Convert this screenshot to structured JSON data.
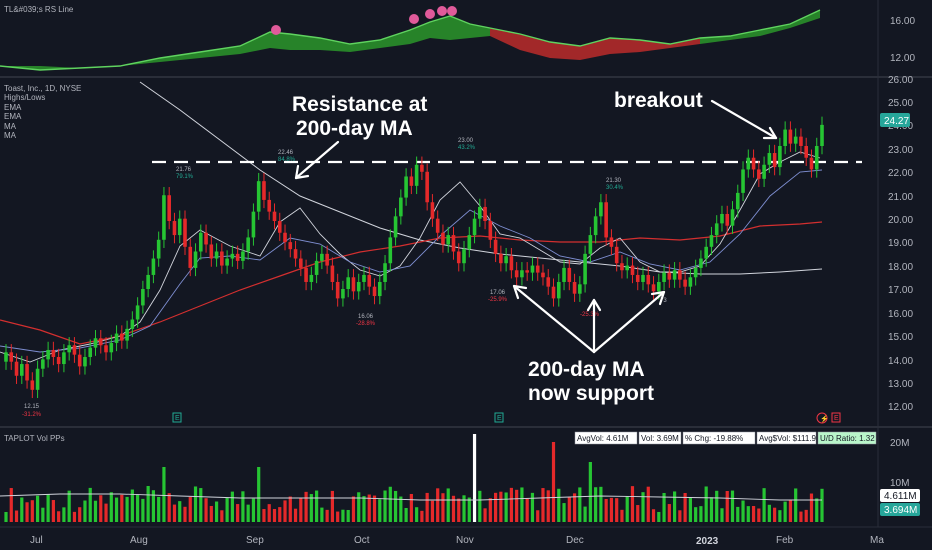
{
  "rs_panel": {
    "title": "TL&#039;s RS Line",
    "yticks": [
      "16.00",
      "12.00"
    ]
  },
  "price_panel": {
    "legend": [
      "Toast, Inc., 1D, NYSE",
      "Highs/Lows",
      "EMA",
      "EMA",
      "MA",
      "MA"
    ],
    "yticks": [
      "26.00",
      "25.00",
      "24.00",
      "23.00",
      "22.00",
      "21.00",
      "20.00",
      "19.00",
      "18.00",
      "17.00",
      "16.00",
      "15.00",
      "14.00",
      "13.00",
      "12.00"
    ],
    "last_price": "24.27",
    "earnings_markers": [
      "E",
      "E",
      "E"
    ],
    "highs_lows": [
      {
        "price": "12.15",
        "pct": "-31.2%",
        "color": "#f23645"
      },
      {
        "price": "21.76",
        "pct": "79.1%",
        "color": "#22ab94"
      },
      {
        "price": "22.46",
        "pct": "84.8%",
        "color": "#22ab94"
      },
      {
        "price": "16.06",
        "pct": "-28.8%",
        "color": "#f23645"
      },
      {
        "price": "23.00",
        "pct": "43.2%",
        "color": "#22ab94"
      },
      {
        "price": "17.06",
        "pct": "-25.9%",
        "color": "#f23645"
      },
      {
        "price": "21.30",
        "pct": "30.4%",
        "color": "#22ab94"
      },
      {
        "price": "",
        "pct": "-25.3%",
        "color": "#f23645"
      },
      {
        "price": "73",
        "pct": "",
        "color": "#f23645"
      }
    ]
  },
  "annotations": {
    "resistance": [
      "Resistance at",
      "200-day MA"
    ],
    "breakout": "breakout",
    "support": [
      "200-day MA",
      "now support"
    ]
  },
  "volume_panel": {
    "title": "TAPLOT Vol PPs",
    "stats": [
      "AvgVol: 4.61M",
      "Vol: 3.69M",
      "% Chg: -19.88%",
      "Avg$Vol: $111.9M",
      "U/D Ratio: 1.32"
    ],
    "yticks": [
      "20M",
      "10M"
    ],
    "avg_label": "4.611M",
    "vol_label": "3.694M"
  },
  "x_axis": {
    "labels": [
      "Jul",
      "Aug",
      "Sep",
      "Oct",
      "Nov",
      "Dec",
      "2023",
      "Feb",
      "Ma"
    ]
  },
  "colors": {
    "up": "#26c533",
    "down": "#e5292a",
    "bg": "#131722",
    "ma200": "#d1d4dc",
    "ma50": "#d32f2f",
    "ema_fast": "#d1d4dc",
    "ema_slow": "#7e8ed1"
  },
  "chart_data": {
    "type": "candlestick",
    "series_points": [
      {
        "p": 14.6,
        "u": 1
      },
      {
        "p": 14.2,
        "u": 0
      },
      {
        "p": 13.6,
        "u": 0
      },
      {
        "p": 14.1,
        "u": 1
      },
      {
        "p": 13.4,
        "u": 0
      },
      {
        "p": 13.0,
        "u": 0
      },
      {
        "p": 13.9,
        "u": 1
      },
      {
        "p": 14.3,
        "u": 1
      },
      {
        "p": 14.7,
        "u": 1
      },
      {
        "p": 14.4,
        "u": 0
      },
      {
        "p": 14.1,
        "u": 0
      },
      {
        "p": 14.6,
        "u": 1
      },
      {
        "p": 14.9,
        "u": 1
      },
      {
        "p": 14.5,
        "u": 0
      },
      {
        "p": 14.0,
        "u": 0
      },
      {
        "p": 14.4,
        "u": 1
      },
      {
        "p": 14.8,
        "u": 1
      },
      {
        "p": 15.2,
        "u": 1
      },
      {
        "p": 14.9,
        "u": 0
      },
      {
        "p": 14.6,
        "u": 0
      },
      {
        "p": 15.0,
        "u": 1
      },
      {
        "p": 15.4,
        "u": 1
      },
      {
        "p": 15.1,
        "u": 0
      },
      {
        "p": 15.6,
        "u": 1
      },
      {
        "p": 16.0,
        "u": 1
      },
      {
        "p": 16.6,
        "u": 1
      },
      {
        "p": 17.3,
        "u": 1
      },
      {
        "p": 17.9,
        "u": 1
      },
      {
        "p": 18.6,
        "u": 1
      },
      {
        "p": 19.4,
        "u": 1
      },
      {
        "p": 21.3,
        "u": 1
      },
      {
        "p": 20.2,
        "u": 0
      },
      {
        "p": 19.6,
        "u": 0
      },
      {
        "p": 20.3,
        "u": 1
      },
      {
        "p": 19.1,
        "u": 0
      },
      {
        "p": 18.2,
        "u": 0
      },
      {
        "p": 18.9,
        "u": 1
      },
      {
        "p": 19.7,
        "u": 1
      },
      {
        "p": 19.2,
        "u": 0
      },
      {
        "p": 18.6,
        "u": 0
      },
      {
        "p": 18.9,
        "u": 1
      },
      {
        "p": 18.3,
        "u": 0
      },
      {
        "p": 18.6,
        "u": 1
      },
      {
        "p": 18.8,
        "u": 1
      },
      {
        "p": 18.5,
        "u": 0
      },
      {
        "p": 18.9,
        "u": 1
      },
      {
        "p": 19.5,
        "u": 1
      },
      {
        "p": 20.6,
        "u": 1
      },
      {
        "p": 21.9,
        "u": 1
      },
      {
        "p": 21.1,
        "u": 0
      },
      {
        "p": 20.6,
        "u": 0
      },
      {
        "p": 20.2,
        "u": 0
      },
      {
        "p": 19.7,
        "u": 0
      },
      {
        "p": 19.3,
        "u": 0
      },
      {
        "p": 19.0,
        "u": 0
      },
      {
        "p": 18.6,
        "u": 0
      },
      {
        "p": 18.2,
        "u": 0
      },
      {
        "p": 17.6,
        "u": 0
      },
      {
        "p": 17.9,
        "u": 1
      },
      {
        "p": 18.5,
        "u": 1
      },
      {
        "p": 18.8,
        "u": 1
      },
      {
        "p": 18.3,
        "u": 0
      },
      {
        "p": 17.6,
        "u": 0
      },
      {
        "p": 16.9,
        "u": 0
      },
      {
        "p": 17.3,
        "u": 1
      },
      {
        "p": 17.8,
        "u": 1
      },
      {
        "p": 17.2,
        "u": 0
      },
      {
        "p": 17.6,
        "u": 1
      },
      {
        "p": 17.9,
        "u": 1
      },
      {
        "p": 17.4,
        "u": 0
      },
      {
        "p": 17.0,
        "u": 0
      },
      {
        "p": 17.6,
        "u": 1
      },
      {
        "p": 18.4,
        "u": 1
      },
      {
        "p": 19.5,
        "u": 1
      },
      {
        "p": 20.4,
        "u": 1
      },
      {
        "p": 21.2,
        "u": 1
      },
      {
        "p": 22.1,
        "u": 1
      },
      {
        "p": 21.7,
        "u": 0
      },
      {
        "p": 22.6,
        "u": 1
      },
      {
        "p": 22.3,
        "u": 0
      },
      {
        "p": 21.0,
        "u": 0
      },
      {
        "p": 20.3,
        "u": 0
      },
      {
        "p": 19.7,
        "u": 0
      },
      {
        "p": 19.2,
        "u": 0
      },
      {
        "p": 19.6,
        "u": 1
      },
      {
        "p": 18.9,
        "u": 0
      },
      {
        "p": 18.4,
        "u": 0
      },
      {
        "p": 19.0,
        "u": 1
      },
      {
        "p": 19.6,
        "u": 1
      },
      {
        "p": 20.3,
        "u": 1
      },
      {
        "p": 20.8,
        "u": 1
      },
      {
        "p": 20.2,
        "u": 0
      },
      {
        "p": 19.4,
        "u": 0
      },
      {
        "p": 18.8,
        "u": 0
      },
      {
        "p": 18.4,
        "u": 0
      },
      {
        "p": 18.7,
        "u": 1
      },
      {
        "p": 18.1,
        "u": 0
      },
      {
        "p": 17.8,
        "u": 0
      },
      {
        "p": 18.1,
        "u": 1
      },
      {
        "p": 18.0,
        "u": 0
      },
      {
        "p": 18.3,
        "u": 1
      },
      {
        "p": 18.0,
        "u": 0
      },
      {
        "p": 17.8,
        "u": 0
      },
      {
        "p": 17.4,
        "u": 0
      },
      {
        "p": 16.9,
        "u": 0
      },
      {
        "p": 17.6,
        "u": 1
      },
      {
        "p": 18.2,
        "u": 1
      },
      {
        "p": 17.6,
        "u": 0
      },
      {
        "p": 17.1,
        "u": 0
      },
      {
        "p": 17.5,
        "u": 1
      },
      {
        "p": 18.8,
        "u": 1
      },
      {
        "p": 19.6,
        "u": 1
      },
      {
        "p": 20.4,
        "u": 1
      },
      {
        "p": 21.0,
        "u": 1
      },
      {
        "p": 19.5,
        "u": 0
      },
      {
        "p": 19.1,
        "u": 0
      },
      {
        "p": 18.4,
        "u": 0
      },
      {
        "p": 18.1,
        "u": 0
      },
      {
        "p": 18.3,
        "u": 1
      },
      {
        "p": 17.9,
        "u": 0
      },
      {
        "p": 17.6,
        "u": 0
      },
      {
        "p": 17.9,
        "u": 1
      },
      {
        "p": 17.5,
        "u": 0
      },
      {
        "p": 17.2,
        "u": 0
      },
      {
        "p": 17.6,
        "u": 1
      },
      {
        "p": 18.0,
        "u": 1
      },
      {
        "p": 17.7,
        "u": 0
      },
      {
        "p": 18.1,
        "u": 1
      },
      {
        "p": 17.7,
        "u": 0
      },
      {
        "p": 17.4,
        "u": 0
      },
      {
        "p": 17.8,
        "u": 1
      },
      {
        "p": 18.2,
        "u": 1
      },
      {
        "p": 18.6,
        "u": 1
      },
      {
        "p": 19.1,
        "u": 1
      },
      {
        "p": 19.6,
        "u": 1
      },
      {
        "p": 20.1,
        "u": 1
      },
      {
        "p": 20.5,
        "u": 1
      },
      {
        "p": 20.0,
        "u": 0
      },
      {
        "p": 20.7,
        "u": 1
      },
      {
        "p": 21.4,
        "u": 1
      },
      {
        "p": 22.4,
        "u": 1
      },
      {
        "p": 22.9,
        "u": 1
      },
      {
        "p": 22.4,
        "u": 0
      },
      {
        "p": 22.0,
        "u": 0
      },
      {
        "p": 22.6,
        "u": 1
      },
      {
        "p": 23.1,
        "u": 1
      },
      {
        "p": 22.5,
        "u": 0
      },
      {
        "p": 23.4,
        "u": 1
      },
      {
        "p": 24.1,
        "u": 1
      },
      {
        "p": 23.5,
        "u": 0
      },
      {
        "p": 23.8,
        "u": 1
      },
      {
        "p": 23.4,
        "u": 0
      },
      {
        "p": 22.9,
        "u": 0
      },
      {
        "p": 22.4,
        "u": 0
      },
      {
        "p": 23.4,
        "u": 1
      },
      {
        "p": 24.3,
        "u": 1
      }
    ],
    "resistance_level": 22.45,
    "price_range": [
      11.5,
      26.3
    ],
    "volume_max_M": 20
  }
}
